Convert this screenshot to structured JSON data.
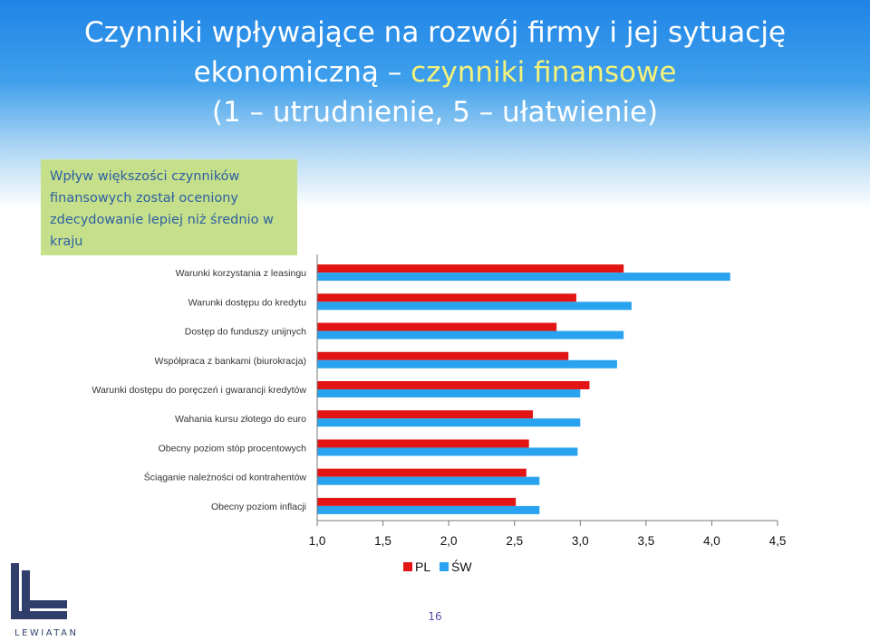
{
  "slide": {
    "title_line1": "Czynniki wpływające na rozwój firmy i jej sytuację",
    "title_line2_a": "ekonomiczną – ",
    "title_line2_b": "czynniki finansowe",
    "title_line3": "(1 – utrudnienie, 5 – ułatwienie)",
    "callout": "Wpływ większości czynników finansowych został oceniony zdecydowanie lepiej niż średnio w kraju",
    "page_number": "16",
    "logo_text": "LEWIATAN"
  },
  "colors": {
    "pl": "#e31414",
    "sw": "#29a3ef",
    "title": "#ffffff",
    "highlight": "#f4f27a"
  },
  "chart_data": {
    "type": "bar",
    "orientation": "horizontal",
    "categories": [
      "Warunki korzystania z leasingu",
      "Warunki dostępu do kredytu",
      "Dostęp do funduszy unijnych",
      "Współpraca z bankami (biurokracja)",
      "Warunki dostępu do poręczeń i gwarancji kredytów",
      "Wahania kursu złotego do euro",
      "Obecny poziom stóp procentowych",
      "Ściąganie należności od kontrahentów",
      "Obecny poziom inflacji"
    ],
    "series": [
      {
        "name": "PL",
        "color": "#e31414",
        "values": [
          3.33,
          2.97,
          2.82,
          2.91,
          3.07,
          2.64,
          2.61,
          2.59,
          2.51
        ]
      },
      {
        "name": "ŚW",
        "color": "#29a3ef",
        "values": [
          4.14,
          3.39,
          3.33,
          3.28,
          3.0,
          3.0,
          2.98,
          2.69,
          2.69
        ]
      }
    ],
    "xlim": [
      1.0,
      4.5
    ],
    "xticks": [
      "1,0",
      "1,5",
      "2,0",
      "2,5",
      "3,0",
      "3,5",
      "4,0",
      "4,5"
    ],
    "legend": "bottom",
    "grid": false
  }
}
